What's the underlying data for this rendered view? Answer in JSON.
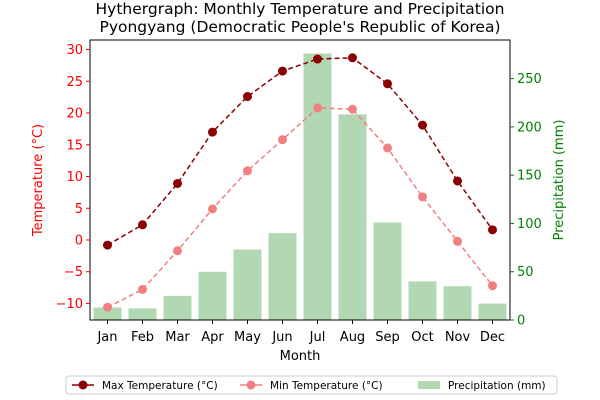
{
  "chart_data": {
    "type": "bar+line",
    "title_line1": "Hythergraph: Monthly Temperature and Precipitation",
    "title_line2": "Pyongyang (Democratic People's Republic of Korea)",
    "xlabel": "Month",
    "ylabel_left": "Temperature (°C)",
    "ylabel_right": "Precipitation (mm)",
    "categories": [
      "Jan",
      "Feb",
      "Mar",
      "Apr",
      "May",
      "Jun",
      "Jul",
      "Aug",
      "Sep",
      "Oct",
      "Nov",
      "Dec"
    ],
    "ylim_left": [
      -12.6,
      31.5
    ],
    "ylim_right": [
      0,
      290
    ],
    "yticks_left": [
      -10,
      -5,
      0,
      5,
      10,
      15,
      20,
      25,
      30
    ],
    "yticks_right": [
      0,
      50,
      100,
      150,
      200,
      250
    ],
    "series": [
      {
        "name": "Max Temperature (°C)",
        "kind": "line",
        "axis": "left",
        "color": "#8b0000",
        "values": [
          -0.8,
          2.4,
          8.9,
          17.0,
          22.6,
          26.6,
          28.5,
          28.7,
          24.6,
          18.1,
          9.3,
          1.6
        ]
      },
      {
        "name": "Min Temperature (°C)",
        "kind": "line",
        "axis": "left",
        "color": "#f08080",
        "values": [
          -10.6,
          -7.8,
          -1.7,
          4.9,
          10.9,
          15.8,
          20.8,
          20.6,
          14.5,
          6.8,
          -0.2,
          -7.2
        ]
      },
      {
        "name": "Precipitation (mm)",
        "kind": "bar",
        "axis": "right",
        "color": "#b1d8b2",
        "values": [
          13,
          12,
          25,
          50,
          73,
          90,
          276,
          213,
          101,
          40,
          35,
          17
        ]
      }
    ],
    "legend_position": "bottom",
    "grid": false,
    "colors": {
      "left_axis": "#ff0000",
      "right_axis": "#008000"
    }
  }
}
